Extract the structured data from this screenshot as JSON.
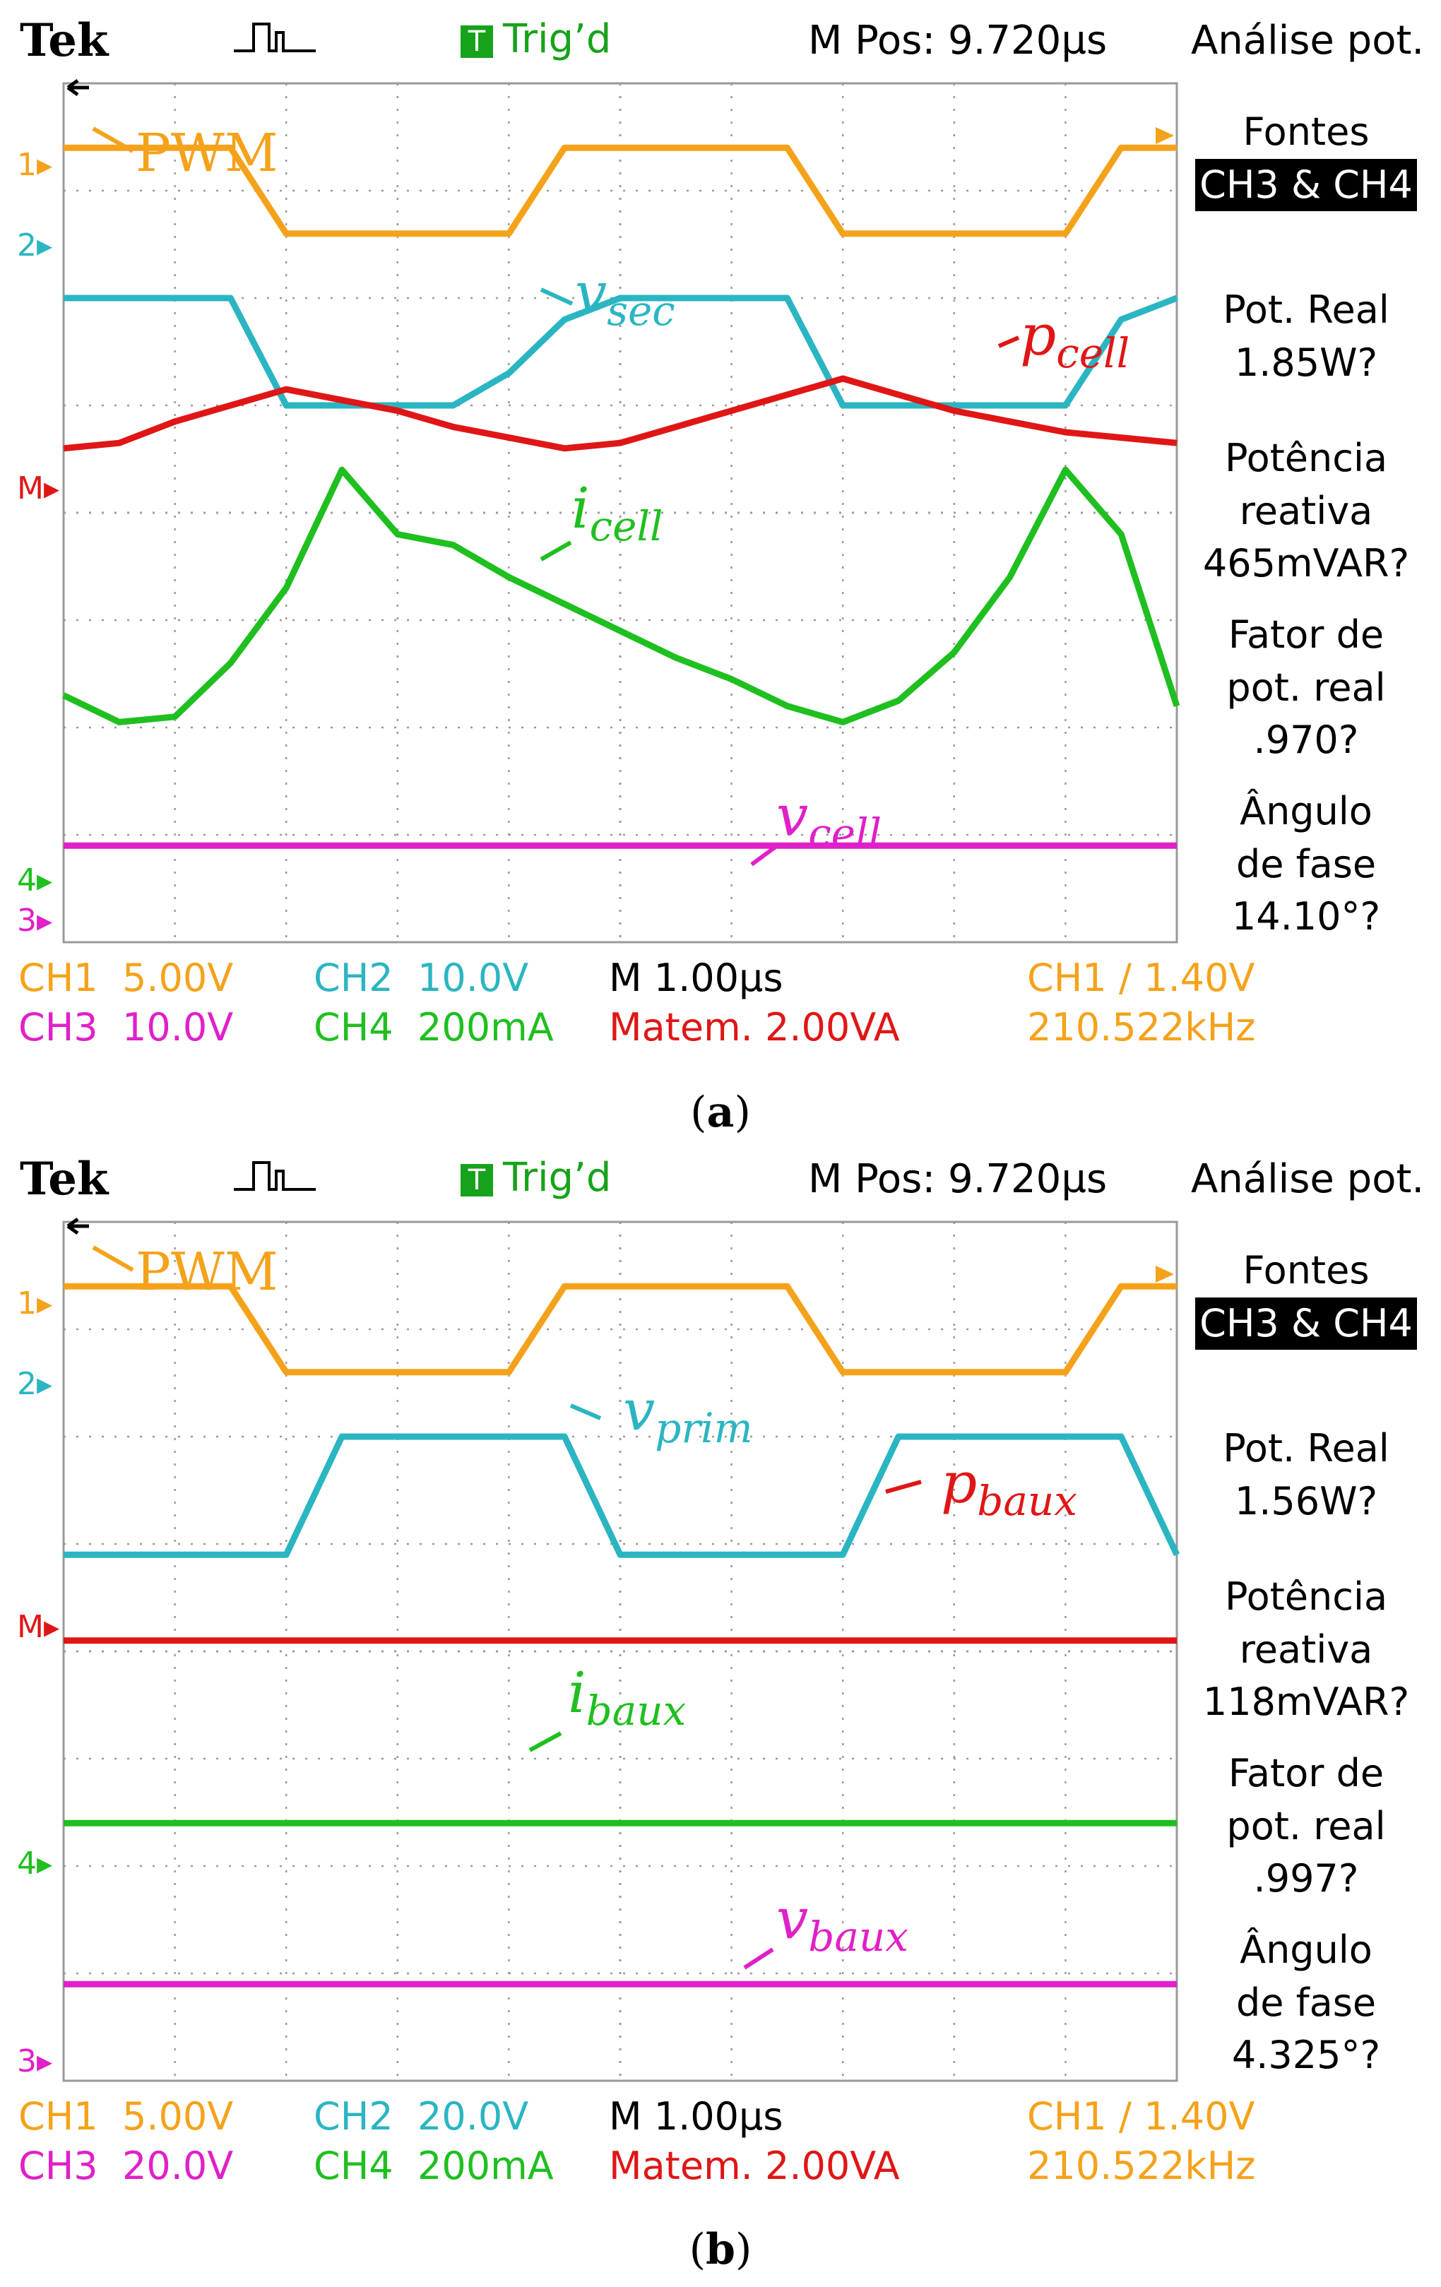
{
  "colors": {
    "ch1": "#f5a21b",
    "ch2": "#2bb5c2",
    "math": "#e01616",
    "ch4": "#1fbf1f",
    "ch3": "#e020c8",
    "grid": "#9a9a9a",
    "trig": "#17a21b"
  },
  "panels": [
    {
      "caption_open": "(",
      "caption_letter": "a",
      "caption_close": ")",
      "header": {
        "brand": "Tek",
        "trig_icon": "T",
        "trig": "Trig’d",
        "mpos": "M Pos: 9.720µs",
        "mode": "Análise pot."
      },
      "side": {
        "fontes_label": "Fontes",
        "fontes_value": "CH3 & CH4",
        "real_label": "Pot. Real",
        "real_value": "1.85W?",
        "reactive_label1": "Potência",
        "reactive_label2": "reativa",
        "reactive_value": "465mVAR?",
        "pf_label1": "Fator de",
        "pf_label2": "pot. real",
        "pf_value": ".970?",
        "angle_label1": "Ângulo",
        "angle_label2": "de fase",
        "angle_value": "14.10°?"
      },
      "bottom": {
        "ch1": "CH1",
        "ch1_scale": "5.00V",
        "ch2": "CH2",
        "ch2_scale": "10.0V",
        "time": "M 1.00µs",
        "trig_src": "CH1",
        "trig_level": "1.40V",
        "ch3": "CH3",
        "ch3_scale": "10.0V",
        "ch4": "CH4",
        "ch4_scale": "200mA",
        "math": "Matem. 2.00VA",
        "freq": "210.522kHz"
      },
      "markers": {
        "m1": "1",
        "m2": "2",
        "mm": "M",
        "m4": "4",
        "m3": "3"
      },
      "labels": {
        "pwm": "PWM",
        "v_main": "v",
        "v_sub": "sec",
        "p_main": "p",
        "p_sub": "cell",
        "i_main": "i",
        "i_sub": "cell",
        "vc_main": "v",
        "vc_sub": "cell"
      }
    },
    {
      "caption_open": "(",
      "caption_letter": "b",
      "caption_close": ")",
      "header": {
        "brand": "Tek",
        "trig_icon": "T",
        "trig": "Trig’d",
        "mpos": "M Pos: 9.720µs",
        "mode": "Análise pot."
      },
      "side": {
        "fontes_label": "Fontes",
        "fontes_value": "CH3 & CH4",
        "real_label": "Pot. Real",
        "real_value": "1.56W?",
        "reactive_label1": "Potência",
        "reactive_label2": "reativa",
        "reactive_value": "118mVAR?",
        "pf_label1": "Fator de",
        "pf_label2": "pot. real",
        "pf_value": ".997?",
        "angle_label1": "Ângulo",
        "angle_label2": "de fase",
        "angle_value": "4.325°?"
      },
      "bottom": {
        "ch1": "CH1",
        "ch1_scale": "5.00V",
        "ch2": "CH2",
        "ch2_scale": "20.0V",
        "time": "M 1.00µs",
        "trig_src": "CH1",
        "trig_level": "1.40V",
        "ch3": "CH3",
        "ch3_scale": "20.0V",
        "ch4": "CH4",
        "ch4_scale": "200mA",
        "math": "Matem. 2.00VA",
        "freq": "210.522kHz"
      },
      "markers": {
        "m1": "1",
        "m2": "2",
        "mm": "M",
        "m4": "4",
        "m3": "3"
      },
      "labels": {
        "pwm": "PWM",
        "v_main": "v",
        "v_sub": "prim",
        "p_main": "p",
        "p_sub": "baux",
        "i_main": "i",
        "i_sub": "baux",
        "vc_main": "v",
        "vc_sub": "baux"
      }
    }
  ],
  "chart_data": [
    {
      "type": "line",
      "x": [
        0,
        0.5,
        1,
        1.5,
        2,
        2.5,
        3,
        3.5,
        4,
        4.5,
        5,
        5.5,
        6,
        6.5,
        7,
        7.5,
        8,
        8.5,
        9,
        9.5,
        10
      ],
      "xlim": [
        0,
        10
      ],
      "ylim": [
        -4,
        4
      ],
      "grid": true,
      "series": [
        {
          "name": "PWM",
          "values": [
            3.4,
            3.4,
            3.4,
            3.4,
            2.6,
            2.6,
            2.6,
            2.6,
            2.6,
            3.4,
            3.4,
            3.4,
            3.4,
            3.4,
            2.6,
            2.6,
            2.6,
            2.6,
            2.6,
            3.4,
            3.4
          ]
        },
        {
          "name": "v_sec",
          "values": [
            2.0,
            2.0,
            2.0,
            2.0,
            1.0,
            1.0,
            1.0,
            1.0,
            1.3,
            1.8,
            2.0,
            2.0,
            2.0,
            2.0,
            1.0,
            1.0,
            1.0,
            1.0,
            1.0,
            1.8,
            2.0
          ]
        },
        {
          "name": "p_cell",
          "values": [
            0.6,
            0.65,
            0.85,
            1.0,
            1.15,
            1.05,
            0.95,
            0.8,
            0.7,
            0.6,
            0.65,
            0.8,
            0.95,
            1.1,
            1.25,
            1.1,
            0.95,
            0.85,
            0.75,
            0.7,
            0.65
          ]
        },
        {
          "name": "i_cell",
          "values": [
            -1.7,
            -1.95,
            -1.9,
            -1.4,
            -0.7,
            0.4,
            -0.2,
            -0.3,
            -0.6,
            -0.85,
            -1.1,
            -1.35,
            -1.55,
            -1.8,
            -1.95,
            -1.75,
            -1.3,
            -0.6,
            0.4,
            -0.2,
            -1.8
          ]
        },
        {
          "name": "v_cell",
          "values": [
            -3.1,
            -3.1,
            -3.1,
            -3.1,
            -3.1,
            -3.1,
            -3.1,
            -3.1,
            -3.1,
            -3.1,
            -3.1,
            -3.1,
            -3.1,
            -3.1,
            -3.1,
            -3.1,
            -3.1,
            -3.1,
            -3.1,
            -3.1,
            -3.1
          ]
        }
      ]
    },
    {
      "type": "line",
      "x": [
        0,
        0.5,
        1,
        1.5,
        2,
        2.5,
        3,
        3.5,
        4,
        4.5,
        5,
        5.5,
        6,
        6.5,
        7,
        7.5,
        8,
        8.5,
        9,
        9.5,
        10
      ],
      "xlim": [
        0,
        10
      ],
      "ylim": [
        -4,
        4
      ],
      "grid": true,
      "series": [
        {
          "name": "PWM",
          "values": [
            3.4,
            3.4,
            3.4,
            3.4,
            2.6,
            2.6,
            2.6,
            2.6,
            2.6,
            3.4,
            3.4,
            3.4,
            3.4,
            3.4,
            2.6,
            2.6,
            2.6,
            2.6,
            2.6,
            3.4,
            3.4
          ]
        },
        {
          "name": "v_prim",
          "values": [
            0.9,
            0.9,
            0.9,
            0.9,
            0.9,
            2.0,
            2.0,
            2.0,
            2.0,
            2.0,
            0.9,
            0.9,
            0.9,
            0.9,
            0.9,
            2.0,
            2.0,
            2.0,
            2.0,
            2.0,
            0.9
          ]
        },
        {
          "name": "p_baux",
          "values": [
            0.1,
            0.1,
            0.1,
            0.1,
            0.1,
            0.1,
            0.1,
            0.1,
            0.1,
            0.1,
            0.1,
            0.1,
            0.1,
            0.1,
            0.1,
            0.1,
            0.1,
            0.1,
            0.1,
            0.1,
            0.1
          ]
        },
        {
          "name": "i_baux",
          "values": [
            -1.6,
            -1.6,
            -1.6,
            -1.6,
            -1.6,
            -1.6,
            -1.6,
            -1.6,
            -1.6,
            -1.6,
            -1.6,
            -1.6,
            -1.6,
            -1.6,
            -1.6,
            -1.6,
            -1.6,
            -1.6,
            -1.6,
            -1.6,
            -1.6
          ]
        },
        {
          "name": "v_baux",
          "values": [
            -3.1,
            -3.1,
            -3.1,
            -3.1,
            -3.1,
            -3.1,
            -3.1,
            -3.1,
            -3.1,
            -3.1,
            -3.1,
            -3.1,
            -3.1,
            -3.1,
            -3.1,
            -3.1,
            -3.1,
            -3.1,
            -3.1,
            -3.1,
            -3.1
          ]
        }
      ]
    }
  ]
}
